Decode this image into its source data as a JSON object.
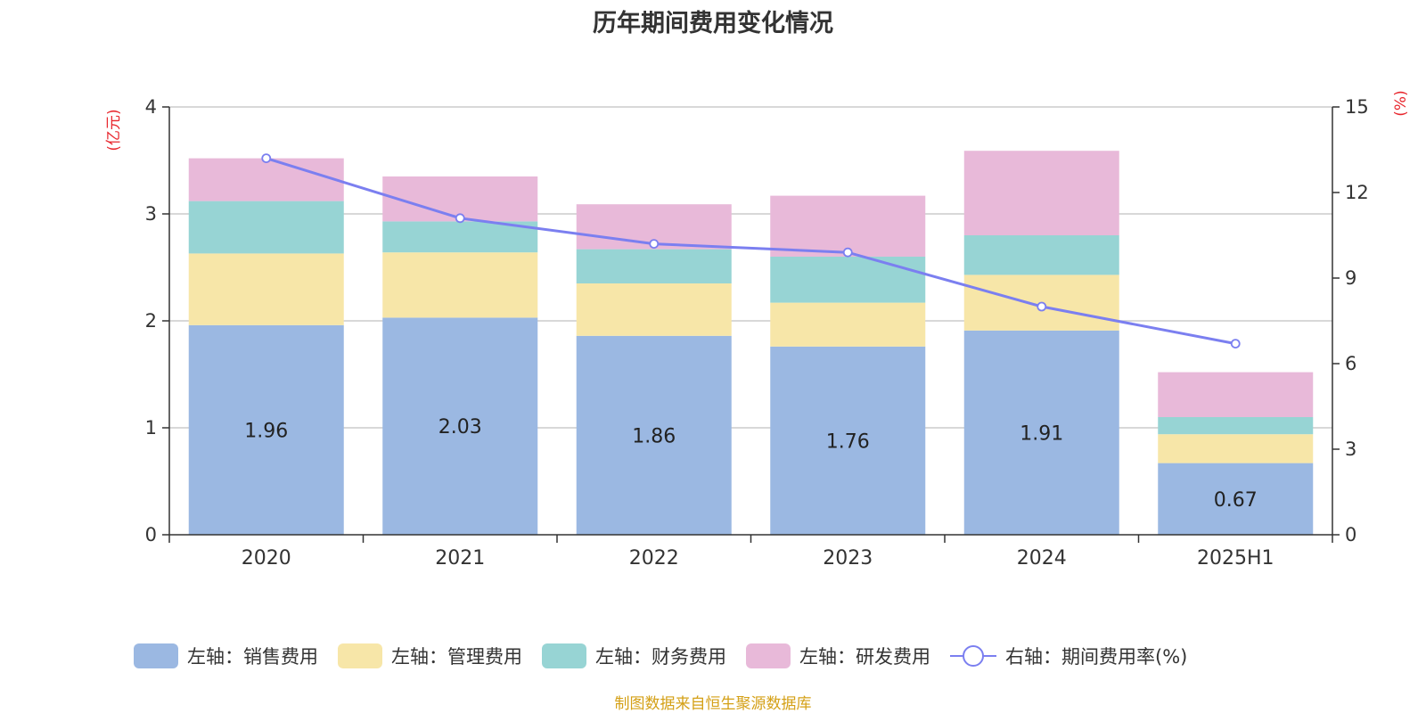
{
  "title": "历年期间费用变化情况",
  "source": "制图数据来自恒生聚源数据库",
  "chart_data": {
    "type": "bar",
    "stacked": true,
    "categories": [
      "2020",
      "2021",
      "2022",
      "2023",
      "2024",
      "2025H1"
    ],
    "left_axis": {
      "unit_label": "(亿元)",
      "range": [
        0,
        4
      ],
      "ticks": [
        "0",
        "1",
        "2",
        "3",
        "4"
      ]
    },
    "right_axis": {
      "unit_label": "(%)",
      "range": [
        0,
        15
      ],
      "ticks": [
        "0",
        "3",
        "6",
        "9",
        "12",
        "15"
      ]
    },
    "grid": true,
    "legend_position": "bottom",
    "series": [
      {
        "name": "左轴：销售费用",
        "axis": "left",
        "color": "#9bb8e2",
        "values": [
          1.96,
          2.03,
          1.86,
          1.76,
          1.91,
          0.67
        ],
        "show_labels": true
      },
      {
        "name": "左轴：管理费用",
        "axis": "left",
        "color": "#f7e6a8",
        "values": [
          0.67,
          0.61,
          0.49,
          0.41,
          0.52,
          0.27
        ]
      },
      {
        "name": "左轴：财务费用",
        "axis": "left",
        "color": "#97d4d4",
        "values": [
          0.49,
          0.29,
          0.32,
          0.43,
          0.37,
          0.16
        ]
      },
      {
        "name": "左轴：研发费用",
        "axis": "left",
        "color": "#e8b9d9",
        "values": [
          0.4,
          0.42,
          0.42,
          0.57,
          0.79,
          0.42
        ]
      },
      {
        "name": "右轴：期间费用率(%)",
        "axis": "right",
        "type": "line",
        "color": "#7b7ff0",
        "values": [
          13.2,
          11.1,
          10.2,
          9.9,
          8.0,
          6.7
        ]
      }
    ]
  }
}
